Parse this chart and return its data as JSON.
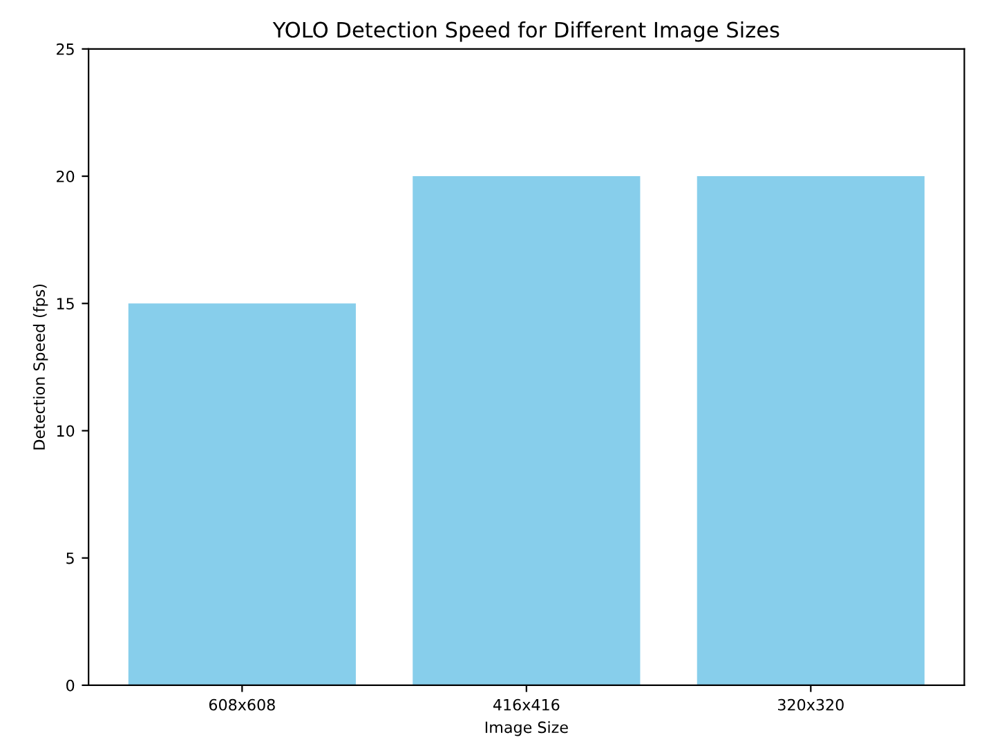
{
  "chart_data": {
    "type": "bar",
    "title": "YOLO Detection Speed for Different Image Sizes",
    "xlabel": "Image Size",
    "ylabel": "Detection Speed (fps)",
    "categories": [
      "608x608",
      "416x416",
      "320x320"
    ],
    "values": [
      15,
      20,
      20
    ],
    "color": "#87ceeb",
    "ylim": [
      0,
      25
    ],
    "yticks": [
      0,
      5,
      10,
      15,
      20,
      25
    ],
    "grid": false
  }
}
